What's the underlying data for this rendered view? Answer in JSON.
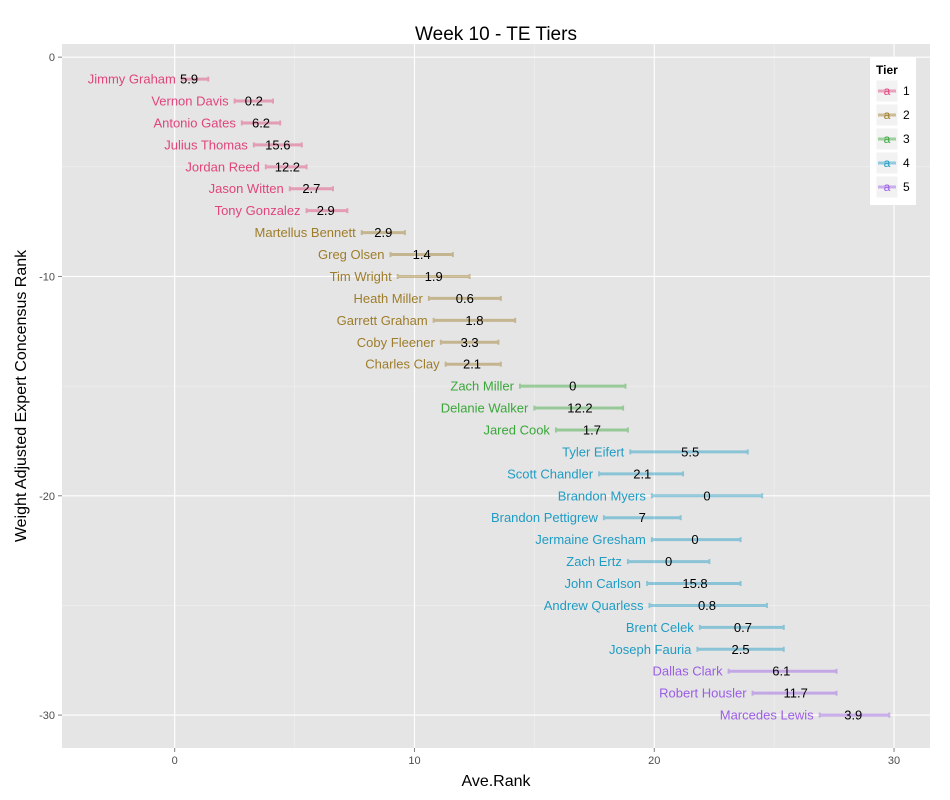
{
  "chart_data": {
    "type": "scatter",
    "title": "Week 10 - TE Tiers",
    "xlabel": "Ave.Rank",
    "ylabel": "Weight Adjusted Expert Concensus Rank",
    "xlim": [
      -4.7,
      31.5
    ],
    "ylim": [
      -31.5,
      0.6
    ],
    "xticks": [
      0,
      10,
      20,
      30
    ],
    "yticks": [
      0,
      -10,
      -20,
      -30
    ],
    "xtick_labels": [
      "0",
      "10",
      "20",
      "30"
    ],
    "ytick_labels": [
      "0",
      "-10",
      "-20",
      "-30"
    ],
    "grid": true,
    "legend": {
      "title": "Tier",
      "position": "top-right",
      "key_glyph": "a",
      "entries": [
        {
          "tier": 1,
          "label": "1",
          "color": "#e0457b"
        },
        {
          "tier": 2,
          "label": "2",
          "color": "#9e7d2a"
        },
        {
          "tier": 3,
          "label": "3",
          "color": "#3aa73a"
        },
        {
          "tier": 4,
          "label": "4",
          "color": "#1f9cc4"
        },
        {
          "tier": 5,
          "label": "5",
          "color": "#9b5de5"
        }
      ]
    },
    "players": [
      {
        "name": "Jimmy Graham",
        "rank": -1,
        "avg": 0.6,
        "lo": 0.3,
        "hi": 1.4,
        "value": "5.9",
        "tier": 1
      },
      {
        "name": "Vernon Davis",
        "rank": -2,
        "avg": 3.3,
        "lo": 2.5,
        "hi": 4.1,
        "value": "0.2",
        "tier": 1
      },
      {
        "name": "Antonio Gates",
        "rank": -3,
        "avg": 3.6,
        "lo": 2.8,
        "hi": 4.4,
        "value": "6.2",
        "tier": 1
      },
      {
        "name": "Julius Thomas",
        "rank": -4,
        "avg": 4.3,
        "lo": 3.3,
        "hi": 5.3,
        "value": "15.6",
        "tier": 1
      },
      {
        "name": "Jordan Reed",
        "rank": -5,
        "avg": 4.7,
        "lo": 3.8,
        "hi": 5.5,
        "value": "12.2",
        "tier": 1
      },
      {
        "name": "Jason Witten",
        "rank": -6,
        "avg": 5.7,
        "lo": 4.8,
        "hi": 6.6,
        "value": "2.7",
        "tier": 1
      },
      {
        "name": "Tony Gonzalez",
        "rank": -7,
        "avg": 6.3,
        "lo": 5.5,
        "hi": 7.2,
        "value": "2.9",
        "tier": 1
      },
      {
        "name": "Martellus Bennett",
        "rank": -8,
        "avg": 8.7,
        "lo": 7.8,
        "hi": 9.6,
        "value": "2.9",
        "tier": 2
      },
      {
        "name": "Greg Olsen",
        "rank": -9,
        "avg": 10.3,
        "lo": 9.0,
        "hi": 11.6,
        "value": "1.4",
        "tier": 2
      },
      {
        "name": "Tim Wright",
        "rank": -10,
        "avg": 10.8,
        "lo": 9.3,
        "hi": 12.3,
        "value": "1.9",
        "tier": 2
      },
      {
        "name": "Heath Miller",
        "rank": -11,
        "avg": 12.1,
        "lo": 10.6,
        "hi": 13.6,
        "value": "0.6",
        "tier": 2
      },
      {
        "name": "Garrett Graham",
        "rank": -12,
        "avg": 12.5,
        "lo": 10.8,
        "hi": 14.2,
        "value": "1.8",
        "tier": 2
      },
      {
        "name": "Coby Fleener",
        "rank": -13,
        "avg": 12.3,
        "lo": 11.1,
        "hi": 13.5,
        "value": "3.3",
        "tier": 2
      },
      {
        "name": "Charles Clay",
        "rank": -14,
        "avg": 12.4,
        "lo": 11.3,
        "hi": 13.6,
        "value": "2.1",
        "tier": 2
      },
      {
        "name": "Zach Miller",
        "rank": -15,
        "avg": 16.6,
        "lo": 14.4,
        "hi": 18.8,
        "value": "0",
        "tier": 3
      },
      {
        "name": "Delanie Walker",
        "rank": -16,
        "avg": 16.9,
        "lo": 15.0,
        "hi": 18.7,
        "value": "12.2",
        "tier": 3
      },
      {
        "name": "Jared Cook",
        "rank": -17,
        "avg": 17.4,
        "lo": 15.9,
        "hi": 18.9,
        "value": "1.7",
        "tier": 3
      },
      {
        "name": "Tyler Eifert",
        "rank": -18,
        "avg": 21.5,
        "lo": 19.0,
        "hi": 23.9,
        "value": "5.5",
        "tier": 4
      },
      {
        "name": "Scott Chandler",
        "rank": -19,
        "avg": 19.5,
        "lo": 17.7,
        "hi": 21.2,
        "value": "2.1",
        "tier": 4
      },
      {
        "name": "Brandon Myers",
        "rank": -20,
        "avg": 22.2,
        "lo": 19.9,
        "hi": 24.5,
        "value": "0",
        "tier": 4
      },
      {
        "name": "Brandon Pettigrew",
        "rank": -21,
        "avg": 19.5,
        "lo": 17.9,
        "hi": 21.1,
        "value": "7",
        "tier": 4
      },
      {
        "name": "Jermaine Gresham",
        "rank": -22,
        "avg": 21.7,
        "lo": 19.9,
        "hi": 23.6,
        "value": "0",
        "tier": 4
      },
      {
        "name": "Zach Ertz",
        "rank": -23,
        "avg": 20.6,
        "lo": 18.9,
        "hi": 22.3,
        "value": "0",
        "tier": 4
      },
      {
        "name": "John Carlson",
        "rank": -24,
        "avg": 21.7,
        "lo": 19.7,
        "hi": 23.6,
        "value": "15.8",
        "tier": 4
      },
      {
        "name": "Andrew Quarless",
        "rank": -25,
        "avg": 22.2,
        "lo": 19.8,
        "hi": 24.7,
        "value": "0.8",
        "tier": 4
      },
      {
        "name": "Brent Celek",
        "rank": -26,
        "avg": 23.7,
        "lo": 21.9,
        "hi": 25.4,
        "value": "0.7",
        "tier": 4
      },
      {
        "name": "Joseph Fauria",
        "rank": -27,
        "avg": 23.6,
        "lo": 21.8,
        "hi": 25.4,
        "value": "2.5",
        "tier": 4
      },
      {
        "name": "Dallas Clark",
        "rank": -28,
        "avg": 25.3,
        "lo": 23.1,
        "hi": 27.6,
        "value": "6.1",
        "tier": 5
      },
      {
        "name": "Robert Housler",
        "rank": -29,
        "avg": 25.9,
        "lo": 24.1,
        "hi": 27.6,
        "value": "11.7",
        "tier": 5
      },
      {
        "name": "Marcedes Lewis",
        "rank": -30,
        "avg": 28.3,
        "lo": 26.9,
        "hi": 29.8,
        "value": "3.9",
        "tier": 5
      }
    ]
  }
}
